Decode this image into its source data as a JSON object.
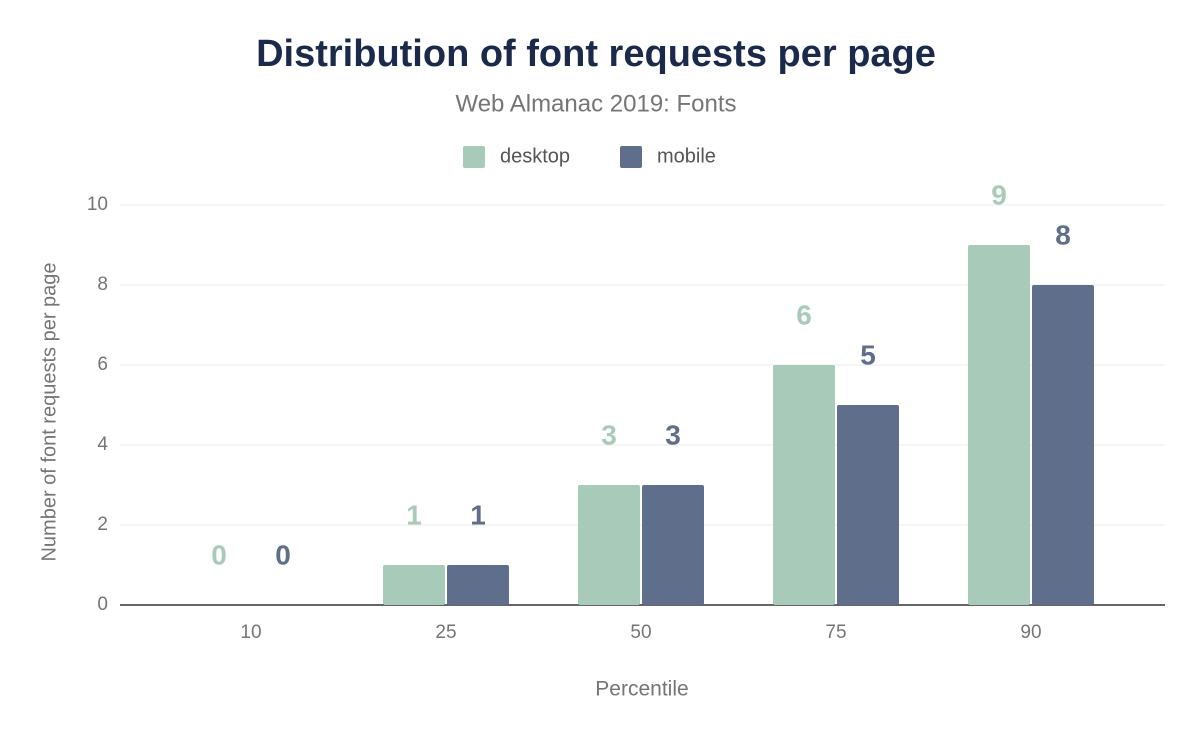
{
  "chart_data": {
    "type": "bar",
    "title": "Distribution of font requests per page",
    "subtitle": "Web Almanac 2019: Fonts",
    "x_label": "Percentile",
    "y_label": "Number of font requests per page",
    "categories": [
      "10",
      "25",
      "50",
      "75",
      "90"
    ],
    "series": [
      {
        "name": "desktop",
        "color": "#a8cbb9",
        "values": [
          0,
          1,
          3,
          6,
          9
        ]
      },
      {
        "name": "mobile",
        "color": "#5f6e8a",
        "values": [
          0,
          1,
          3,
          5,
          8
        ]
      }
    ],
    "ylim": [
      0,
      10
    ],
    "yticks": [
      0,
      2,
      4,
      6,
      8,
      10
    ],
    "grid": true,
    "legend": "top"
  }
}
